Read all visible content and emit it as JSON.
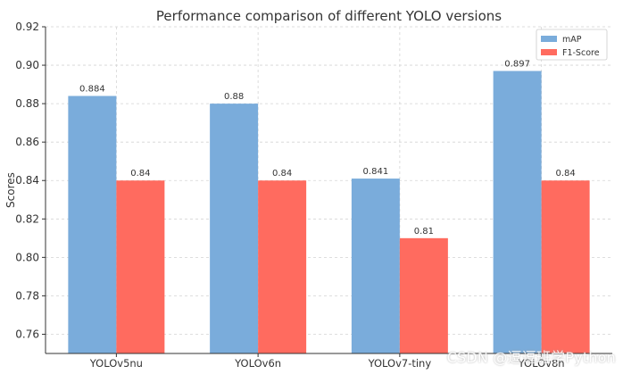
{
  "chart_data": {
    "type": "bar",
    "title": "Performance comparison of different YOLO versions",
    "xlabel": "",
    "ylabel": "Scores",
    "categories": [
      "YOLOv5nu",
      "YOLOv6n",
      "YOLOv7-tiny",
      "YOLOv8n"
    ],
    "series": [
      {
        "name": "mAP",
        "values": [
          0.884,
          0.88,
          0.841,
          0.897
        ],
        "labels": [
          "0.884",
          "0.88",
          "0.841",
          "0.897"
        ],
        "color": "#7aacdb"
      },
      {
        "name": "F1-Score",
        "values": [
          0.84,
          0.84,
          0.81,
          0.84
        ],
        "labels": [
          "0.84",
          "0.84",
          "0.81",
          "0.84"
        ],
        "color": "#ff6b5f"
      }
    ],
    "ylim": [
      0.75,
      0.92
    ],
    "yticks": [
      0.76,
      0.78,
      0.8,
      0.82,
      0.84,
      0.86,
      0.88,
      0.9,
      0.92
    ],
    "ytick_labels": [
      "0.76",
      "0.78",
      "0.80",
      "0.82",
      "0.84",
      "0.86",
      "0.88",
      "0.90",
      "0.92"
    ],
    "grid": true,
    "legend": "top-right"
  },
  "watermark": "CSDN @逗逗班学Python"
}
